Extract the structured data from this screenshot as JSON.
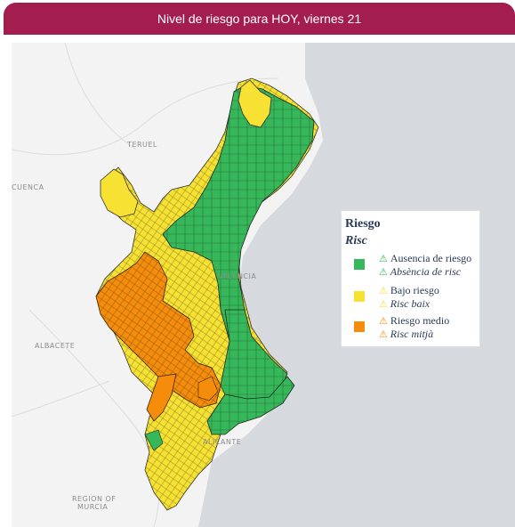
{
  "header": {
    "title": "Nivel de riesgo para HOY, viernes 21"
  },
  "colors": {
    "header_bg": "#a41d4f",
    "green": "#35b75a",
    "yellow": "#f7e233",
    "orange": "#f58c0c",
    "sea": "#d6dade",
    "land": "#f3f3f3"
  },
  "places": {
    "teruel": "Teruel",
    "cuenca": "Cuenca",
    "albacete": "ALBACETE",
    "valencia": "VALENCIA",
    "alicante": "ALICANTE",
    "murcia_1": "REGION OF",
    "murcia_2": "MURCIA"
  },
  "legend": {
    "title": "Riesgo",
    "subtitle": "Risc",
    "items": [
      {
        "icon": "warning-icon",
        "label_es": "Ausencia de riesgo",
        "label_va": "Absència de risc",
        "color": "#35b75a"
      },
      {
        "icon": "warning-icon",
        "label_es": "Bajo riesgo",
        "label_va": "Risc baix",
        "color": "#f7e233"
      },
      {
        "icon": "warning-icon",
        "label_es": "Riesgo medio",
        "label_va": "Risc mitjà",
        "color": "#f58c0c"
      }
    ]
  }
}
